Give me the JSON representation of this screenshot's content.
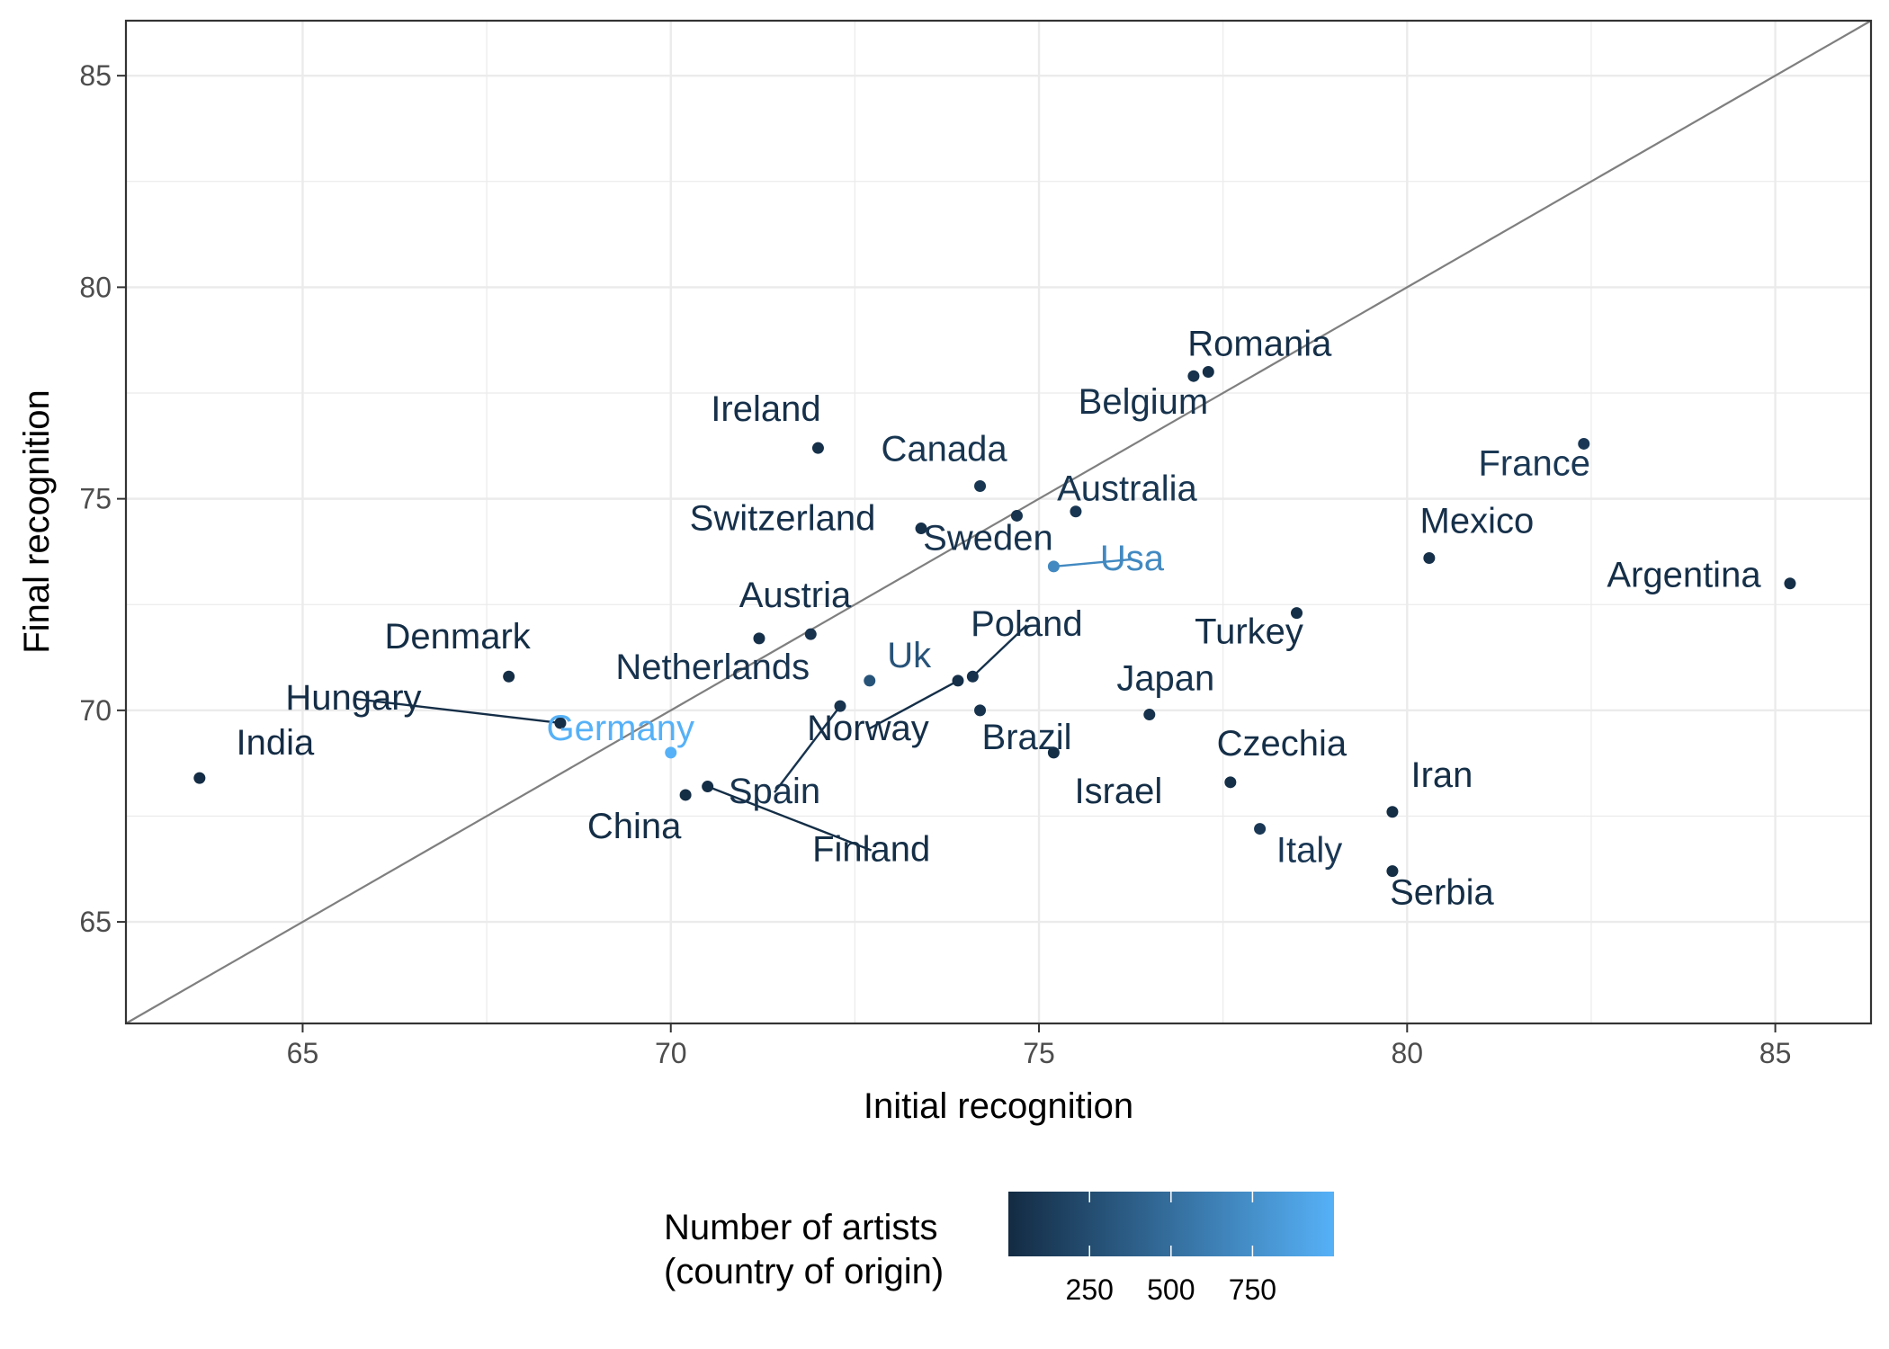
{
  "chart_data": {
    "type": "scatter",
    "xlabel": "Initial recognition",
    "ylabel": "Final recognition",
    "xlim": [
      62.6,
      86.3
    ],
    "ylim": [
      62.6,
      86.3
    ],
    "x_ticks": [
      65,
      70,
      75,
      80,
      85
    ],
    "y_ticks": [
      65,
      70,
      75,
      80,
      85
    ],
    "grid": true,
    "reference_line": "y = x",
    "colors": {
      "low": "#132B43",
      "high": "#56B1F7",
      "line": "#7f7f7f",
      "grid": "#ebebeb",
      "panel_border": "#333333"
    },
    "legend": {
      "title_line1": "Number of artists",
      "title_line2": "(country of origin)",
      "position": "bottom",
      "range": [
        1,
        1000
      ],
      "ticks": [
        {
          "value": 250,
          "label": "250"
        },
        {
          "value": 500,
          "label": "500"
        },
        {
          "value": 750,
          "label": "750"
        }
      ]
    },
    "points": [
      {
        "label": "India",
        "x": 63.6,
        "y": 68.4,
        "artists": 10
      },
      {
        "label": "Denmark",
        "x": 67.8,
        "y": 70.8,
        "artists": 20
      },
      {
        "label": "Hungary",
        "x": 68.5,
        "y": 69.7,
        "artists": 25
      },
      {
        "label": "Germany",
        "x": 70.0,
        "y": 69.0,
        "artists": 1000
      },
      {
        "label": "China",
        "x": 70.2,
        "y": 68.0,
        "artists": 20
      },
      {
        "label": "Finland",
        "x": 70.5,
        "y": 68.2,
        "artists": 20
      },
      {
        "label": "Austria",
        "x": 71.2,
        "y": 71.7,
        "artists": 40
      },
      {
        "label": "Netherlands",
        "x": 71.9,
        "y": 71.8,
        "artists": 60
      },
      {
        "label": "Spain",
        "x": 72.3,
        "y": 70.1,
        "artists": 60
      },
      {
        "label": "Ireland",
        "x": 72.0,
        "y": 76.2,
        "artists": 40
      },
      {
        "label": "Uk",
        "x": 72.7,
        "y": 70.7,
        "artists": 300
      },
      {
        "label": "Switzerland",
        "x": 73.4,
        "y": 74.3,
        "artists": 40
      },
      {
        "label": "Norway",
        "x": 73.9,
        "y": 70.7,
        "artists": 30
      },
      {
        "label": "Poland",
        "x": 74.1,
        "y": 70.8,
        "artists": 50
      },
      {
        "label": "Brazil",
        "x": 74.2,
        "y": 70.0,
        "artists": 50
      },
      {
        "label": "Canada",
        "x": 74.2,
        "y": 75.3,
        "artists": 80
      },
      {
        "label": "Sweden",
        "x": 74.7,
        "y": 74.6,
        "artists": 60
      },
      {
        "label": "Usa",
        "x": 75.2,
        "y": 73.4,
        "artists": 700
      },
      {
        "label": "Israel",
        "x": 75.2,
        "y": 69.0,
        "artists": 20
      },
      {
        "label": "Australia",
        "x": 75.5,
        "y": 74.7,
        "artists": 80
      },
      {
        "label": "Japan",
        "x": 76.5,
        "y": 69.9,
        "artists": 50
      },
      {
        "label": "Belgium",
        "x": 77.1,
        "y": 77.9,
        "artists": 50
      },
      {
        "label": "Romania",
        "x": 77.3,
        "y": 78.0,
        "artists": 30
      },
      {
        "label": "Czechia",
        "x": 77.6,
        "y": 68.3,
        "artists": 30
      },
      {
        "label": "Italy",
        "x": 78.0,
        "y": 67.2,
        "artists": 100
      },
      {
        "label": "Turkey",
        "x": 78.5,
        "y": 72.3,
        "artists": 30
      },
      {
        "label": "Serbia",
        "x": 79.8,
        "y": 66.2,
        "artists": 20
      },
      {
        "label": "Iran",
        "x": 79.8,
        "y": 67.6,
        "artists": 20
      },
      {
        "label": "Mexico",
        "x": 80.3,
        "y": 73.6,
        "artists": 40
      },
      {
        "label": "France",
        "x": 82.4,
        "y": 76.3,
        "artists": 100
      },
      {
        "label": "Argentina",
        "x": 85.2,
        "y": 73.0,
        "artists": 30
      }
    ]
  }
}
